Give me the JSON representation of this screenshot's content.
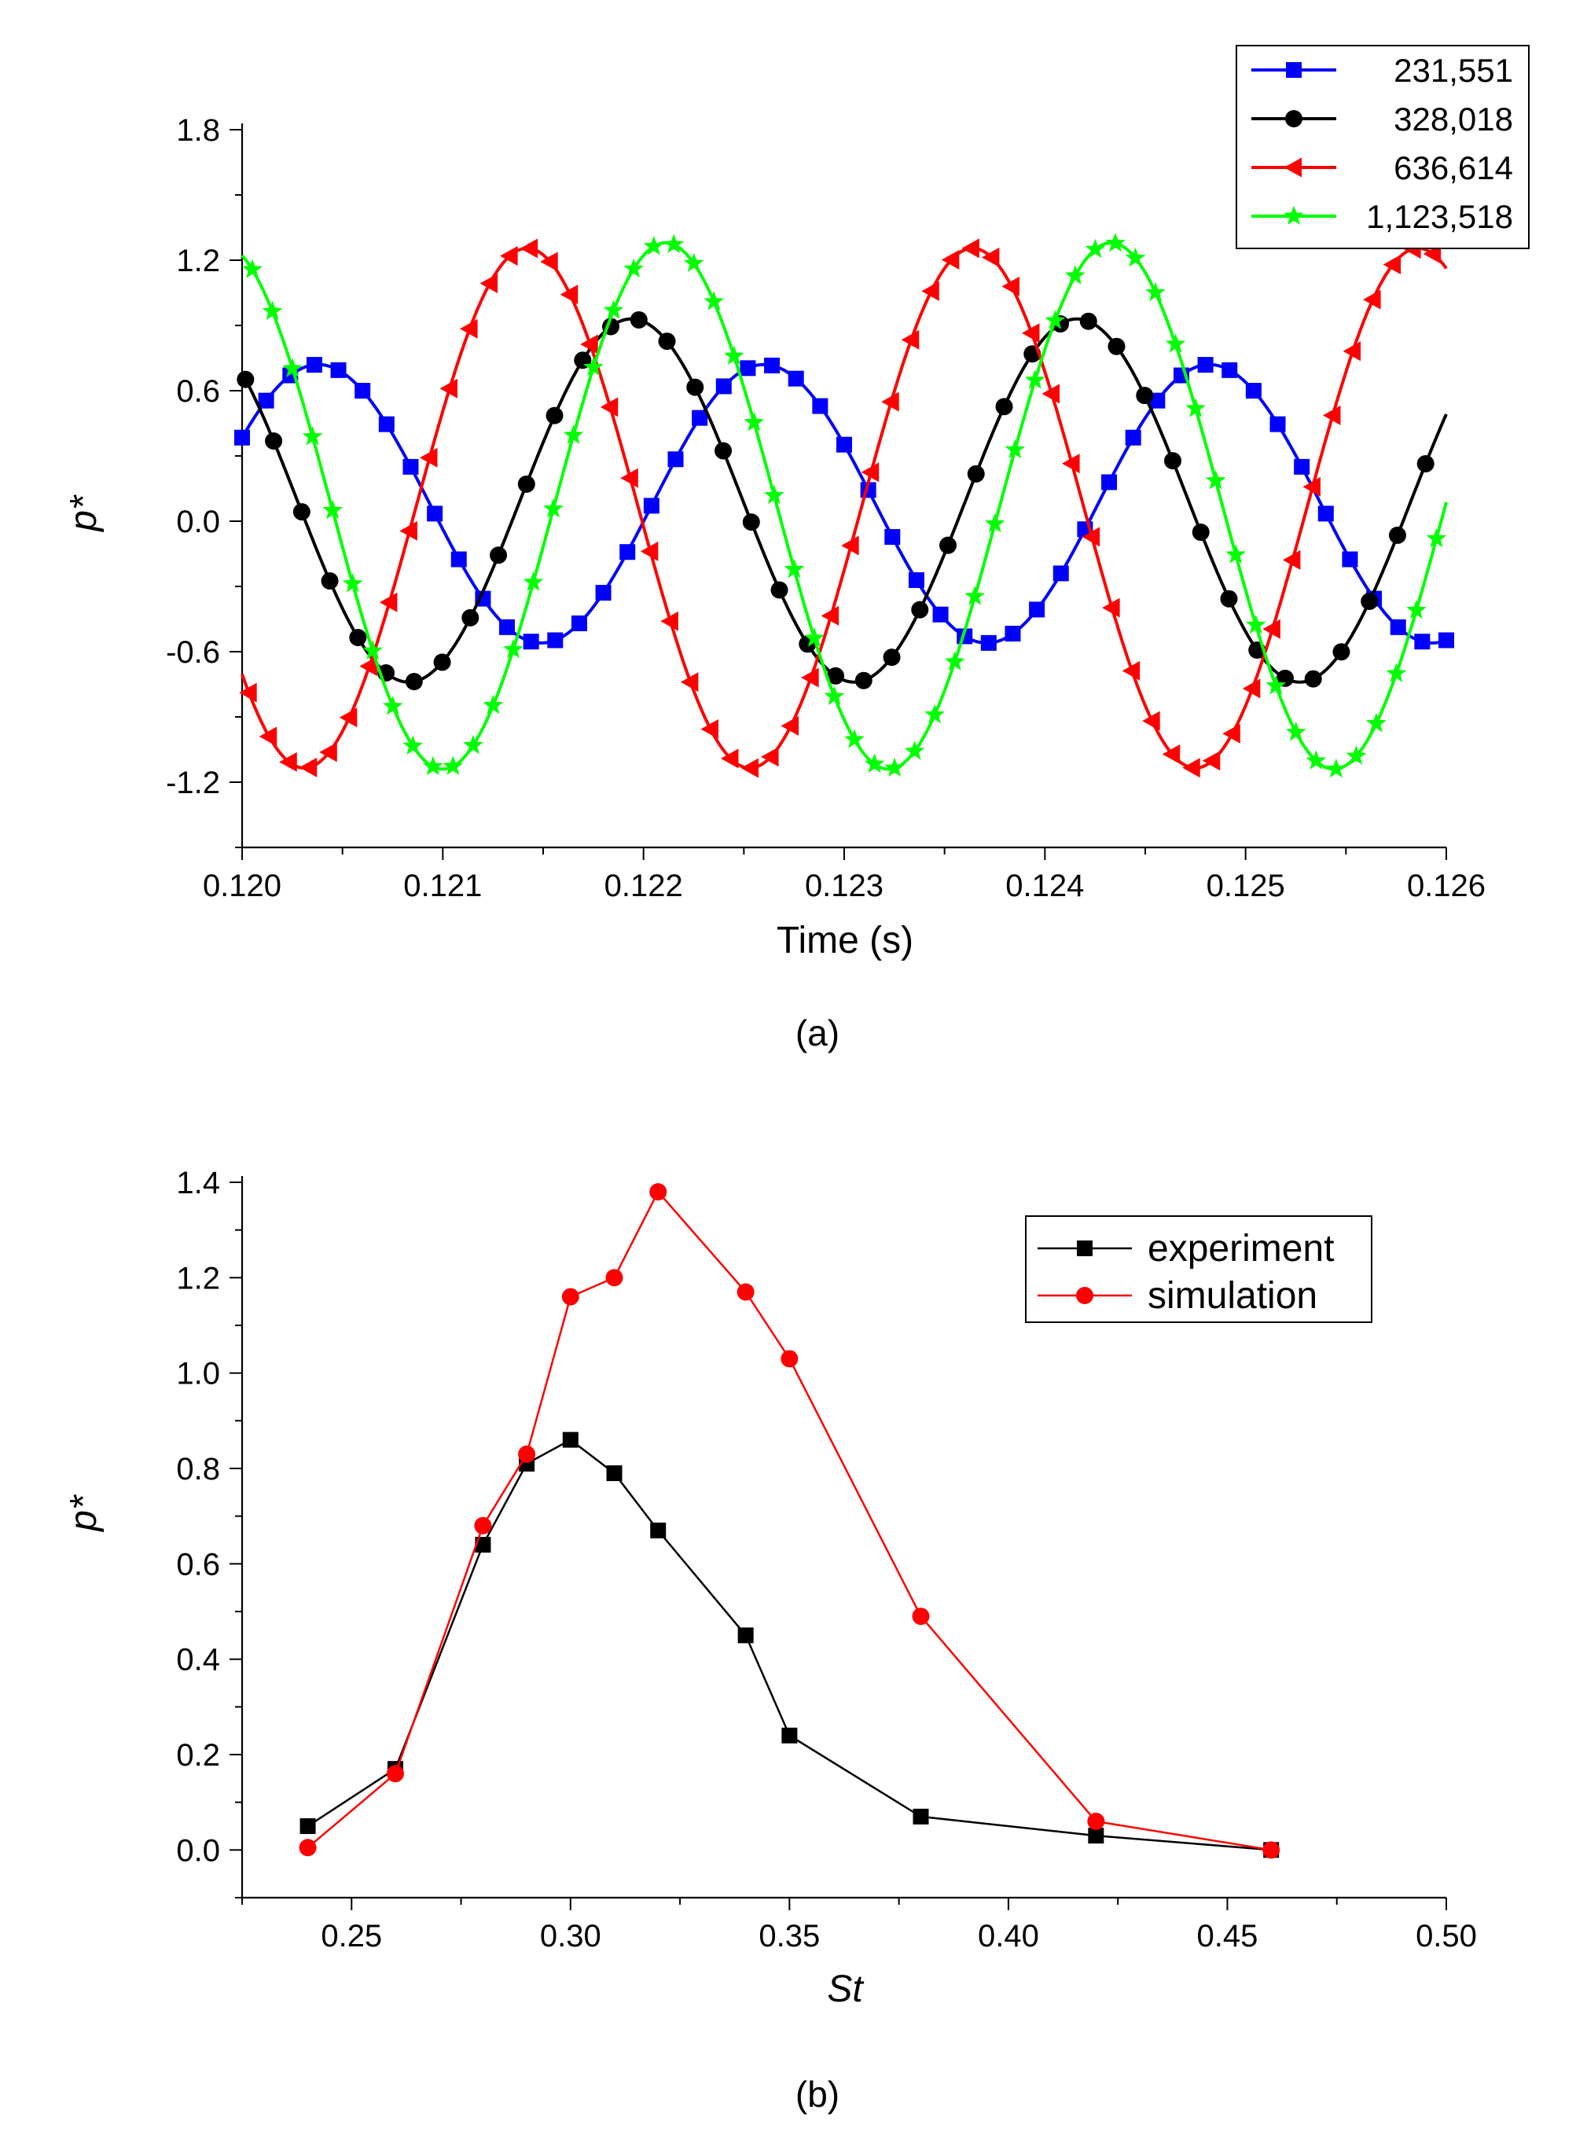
{
  "chart_data": [
    {
      "type": "line",
      "caption": "(a)",
      "xlabel": "Time (s)",
      "ylabel": "p*",
      "xlim": [
        0.12,
        0.126
      ],
      "ylim": [
        -1.5,
        1.8
      ],
      "xticks": [
        "0.120",
        "0.121",
        "0.122",
        "0.123",
        "0.124",
        "0.125",
        "0.126"
      ],
      "xtick_values": [
        0.12,
        0.121,
        0.122,
        0.123,
        0.124,
        0.125,
        0.126
      ],
      "yticks": [
        "-1.2",
        "-0.6",
        "0.0",
        "0.6",
        "1.2",
        "1.8"
      ],
      "ytick_values": [
        -1.2,
        -0.6,
        0.0,
        0.6,
        1.2,
        1.8
      ],
      "legend_position": "top-right",
      "series": [
        {
          "name": "231,551",
          "color": "#0000ff",
          "marker": "square",
          "amplitude": 0.64,
          "offset": 0.08,
          "period": 0.00222,
          "peak_time": 0.12038,
          "marker_step": 0.00012
        },
        {
          "name": "328,018",
          "color": "#000000",
          "marker": "circle",
          "amplitude": 0.835,
          "offset": 0.095,
          "period": 0.00222,
          "peak_time": 0.12194,
          "marker_step": 0.00014
        },
        {
          "name": "636,614",
          "color": "#ff0000",
          "marker": "triangle-left",
          "amplitude": 1.195,
          "offset": 0.06,
          "period": 0.00222,
          "peak_time": 0.12142,
          "marker_step": 0.0001
        },
        {
          "name": "1,123,518",
          "color": "#00ff00",
          "marker": "star",
          "amplitude": 1.21,
          "offset": 0.07,
          "period": 0.00222,
          "peak_time": 0.12211,
          "marker_step": 0.0001
        }
      ]
    },
    {
      "type": "line",
      "caption": "(b)",
      "xlabel": "St",
      "ylabel": "p*",
      "xlim": [
        0.225,
        0.5
      ],
      "ylim": [
        -0.1,
        1.4
      ],
      "xticks": [
        "0.25",
        "0.30",
        "0.35",
        "0.40",
        "0.45",
        "0.50"
      ],
      "xtick_values": [
        0.25,
        0.3,
        0.35,
        0.4,
        0.45,
        0.5
      ],
      "yticks": [
        "0.0",
        "0.2",
        "0.4",
        "0.6",
        "0.8",
        "1.0",
        "1.2",
        "1.4"
      ],
      "ytick_values": [
        0.0,
        0.2,
        0.4,
        0.6,
        0.8,
        1.0,
        1.2,
        1.4
      ],
      "legend_position": "upper-right",
      "series": [
        {
          "name": "experiment",
          "color": "#000000",
          "marker": "square",
          "x": [
            0.24,
            0.26,
            0.28,
            0.29,
            0.3,
            0.31,
            0.32,
            0.34,
            0.35,
            0.38,
            0.42,
            0.46
          ],
          "y": [
            0.05,
            0.17,
            0.64,
            0.81,
            0.86,
            0.79,
            0.67,
            0.45,
            0.24,
            0.07,
            0.03,
            0.0
          ]
        },
        {
          "name": "simulation",
          "color": "#ff0000",
          "marker": "circle",
          "x": [
            0.24,
            0.26,
            0.28,
            0.29,
            0.3,
            0.31,
            0.32,
            0.34,
            0.35,
            0.38,
            0.42,
            0.46
          ],
          "y": [
            0.005,
            0.16,
            0.68,
            0.83,
            1.16,
            1.2,
            1.38,
            1.17,
            1.03,
            0.49,
            0.06,
            0.0
          ]
        }
      ]
    }
  ]
}
